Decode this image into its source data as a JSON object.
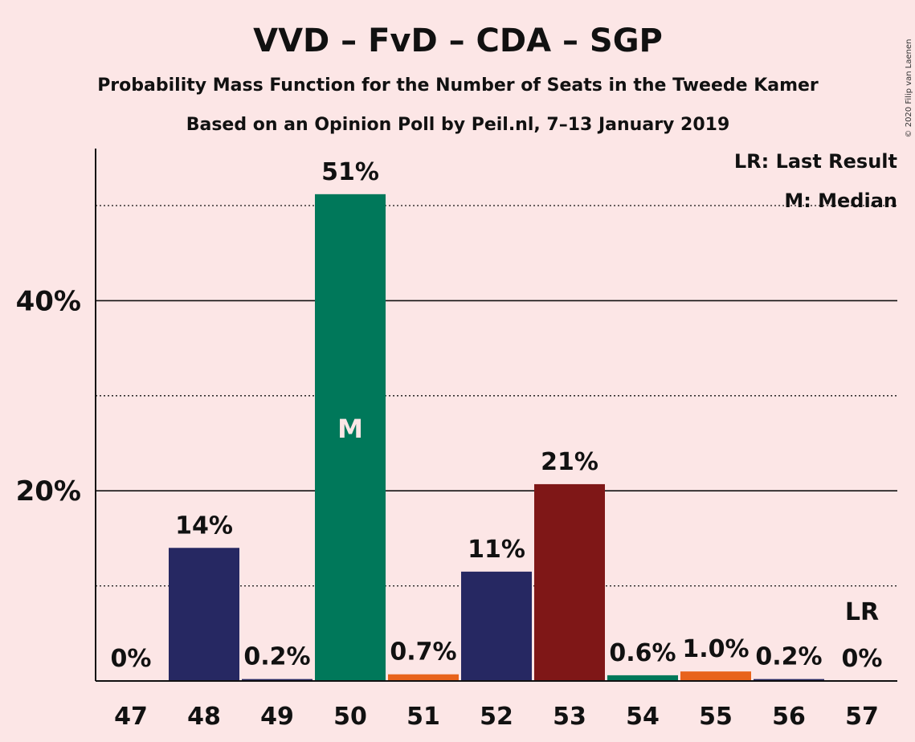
{
  "chart_data": {
    "type": "bar",
    "title": "VVD – FvD – CDA – SGP",
    "subtitle": "Probability Mass Function for the Number of Seats in the Tweede Kamer",
    "subtitle2": "Based on an Opinion Poll by Peil.nl, 7–13 January 2019",
    "copyright": "© 2020 Filip van Laenen",
    "legend": [
      "LR: Last Result",
      "M: Median"
    ],
    "legend_position": "top-right",
    "categories": [
      "47",
      "48",
      "49",
      "50",
      "51",
      "52",
      "53",
      "54",
      "55",
      "56",
      "57"
    ],
    "values": [
      0,
      14.0,
      0.2,
      51.2,
      0.7,
      11.5,
      20.7,
      0.6,
      1.0,
      0.2,
      0
    ],
    "labels": [
      "0%",
      "14%",
      "0.2%",
      "51%",
      "0.7%",
      "11%",
      "21%",
      "0.6%",
      "1.0%",
      "0.2%",
      "0%"
    ],
    "colors": [
      "#262862",
      "#262862",
      "#262862",
      "#00785a",
      "#e8631c",
      "#262862",
      "#7f1717",
      "#00785a",
      "#e8631c",
      "#262862",
      "#262862"
    ],
    "yticks": [
      "20%",
      "40%"
    ],
    "ytick_values": [
      20,
      40
    ],
    "minor_gridlines": [
      10,
      30,
      50
    ],
    "ylim": [
      0,
      56
    ],
    "median_index": 3,
    "median_label": "M",
    "last_result_index": 10,
    "last_result_label": "LR"
  }
}
